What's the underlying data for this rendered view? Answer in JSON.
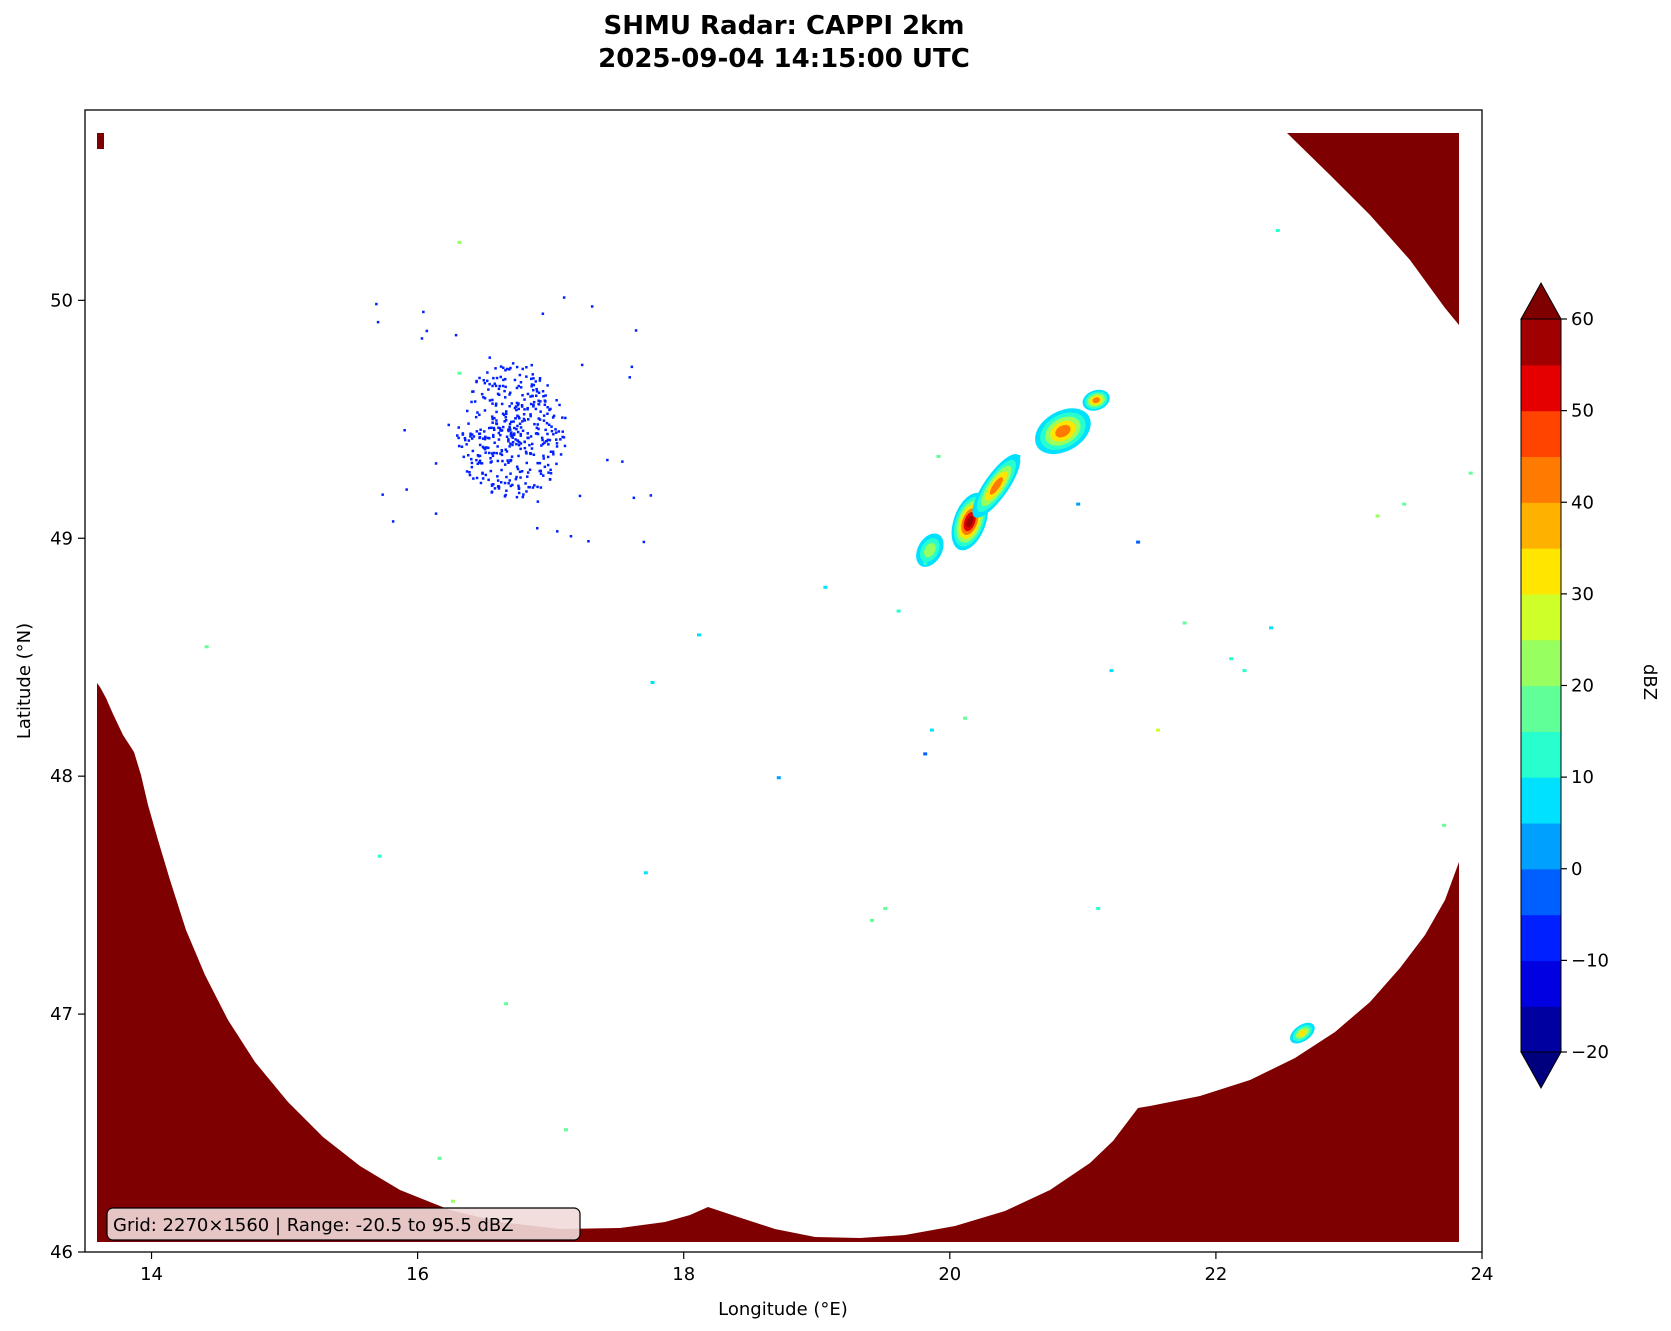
{
  "title": {
    "line1": "SHMU Radar: CAPPI 2km",
    "line2": "2025-09-04 14:15:00 UTC"
  },
  "chart_data": {
    "type": "heatmap",
    "xlabel": "Longitude (°E)",
    "ylabel": "Latitude (°N)",
    "xlim": [
      13.5,
      24
    ],
    "ylim": [
      46,
      50.8
    ],
    "xticks": [
      14,
      16,
      18,
      20,
      22,
      24
    ],
    "yticks": [
      46,
      47,
      48,
      49,
      50
    ],
    "annotation": "Grid: 2270×1560 | Range: -20.5 to 95.5 dBZ",
    "colorbar": {
      "label": "dBZ",
      "min": -20,
      "max": 60,
      "ticks": [
        -20,
        -10,
        0,
        10,
        20,
        30,
        40,
        50,
        60
      ],
      "tick_labels": [
        "−20",
        "−10",
        "0",
        "10",
        "20",
        "30",
        "40",
        "50",
        "60"
      ],
      "extend": "both",
      "under_color": "#00007f",
      "over_color": "#7f0000",
      "levels": [
        {
          "from": -20,
          "to": -15,
          "color": "#0000a0"
        },
        {
          "from": -15,
          "to": -10,
          "color": "#0000e0"
        },
        {
          "from": -10,
          "to": -5,
          "color": "#0020ff"
        },
        {
          "from": -5,
          "to": 0,
          "color": "#0060ff"
        },
        {
          "from": 0,
          "to": 5,
          "color": "#00a0ff"
        },
        {
          "from": 5,
          "to": 10,
          "color": "#00e0ff"
        },
        {
          "from": 10,
          "to": 15,
          "color": "#28ffce"
        },
        {
          "from": 15,
          "to": 20,
          "color": "#60ff97"
        },
        {
          "from": 20,
          "to": 25,
          "color": "#97ff60"
        },
        {
          "from": 25,
          "to": 30,
          "color": "#ceff29"
        },
        {
          "from": 30,
          "to": 35,
          "color": "#ffe600"
        },
        {
          "from": 35,
          "to": 40,
          "color": "#ffb100"
        },
        {
          "from": 40,
          "to": 45,
          "color": "#ff7a00"
        },
        {
          "from": 45,
          "to": 50,
          "color": "#ff4400"
        },
        {
          "from": 50,
          "to": 55,
          "color": "#e40000"
        },
        {
          "from": 55,
          "to": 60,
          "color": "#a10000"
        }
      ]
    },
    "out_of_range_color": "#7f0000",
    "echo_regions": [
      {
        "name": "north-west weak echo cluster",
        "lon": 16.7,
        "lat": 49.45,
        "dbz": -8
      },
      {
        "name": "storm line core",
        "lon": 20.15,
        "lat": 49.07,
        "dbz": 55
      },
      {
        "name": "storm line cell 2",
        "lon": 20.35,
        "lat": 49.22,
        "dbz": 45
      },
      {
        "name": "storm line cell 3",
        "lon": 20.85,
        "lat": 49.45,
        "dbz": 45
      },
      {
        "name": "storm line cell 4",
        "lon": 21.1,
        "lat": 49.58,
        "dbz": 45
      },
      {
        "name": "storm line weak cell",
        "lon": 19.85,
        "lat": 48.95,
        "dbz": 30
      },
      {
        "name": "south-east edge echo",
        "lon": 22.65,
        "lat": 46.92,
        "dbz": 35
      }
    ]
  }
}
